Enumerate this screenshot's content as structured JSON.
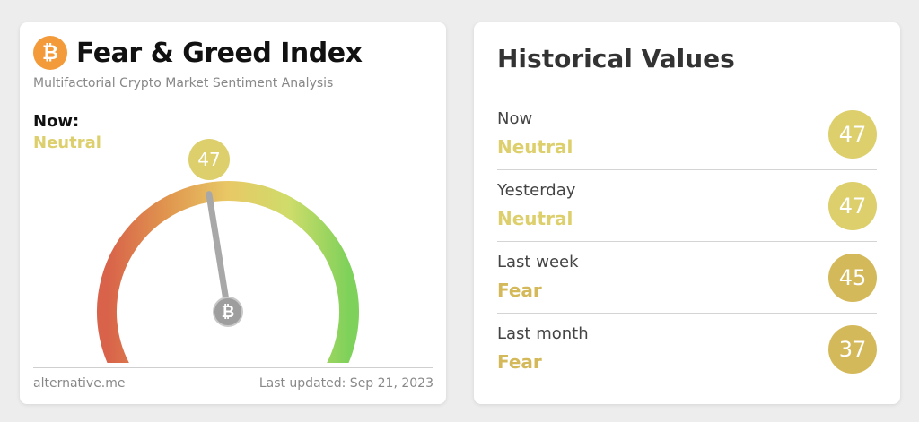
{
  "fear_greed": {
    "title": "Fear & Greed Index",
    "subtitle": "Multifactorial Crypto Market Sentiment Analysis",
    "now_label": "Now:",
    "now_classification": "Neutral",
    "value": "47",
    "gauge_min": 0,
    "gauge_max": 100,
    "footer_source": "alternative.me",
    "footer_updated": "Last updated: Sep 21, 2023",
    "logo_icon": "bitcoin-icon"
  },
  "historical": {
    "title": "Historical Values",
    "rows": [
      {
        "period": "Now",
        "classification": "Neutral",
        "value": "47"
      },
      {
        "period": "Yesterday",
        "classification": "Neutral",
        "value": "47"
      },
      {
        "period": "Last week",
        "classification": "Fear",
        "value": "45"
      },
      {
        "period": "Last month",
        "classification": "Fear",
        "value": "37"
      }
    ]
  },
  "colors": {
    "neutral": "#dccf6c",
    "fear": "#d4b95a",
    "bitcoin_orange": "#f39b3b",
    "gauge_fear": "#d8624a",
    "gauge_mid": "#e8c865",
    "gauge_greed": "#7ed15a"
  }
}
